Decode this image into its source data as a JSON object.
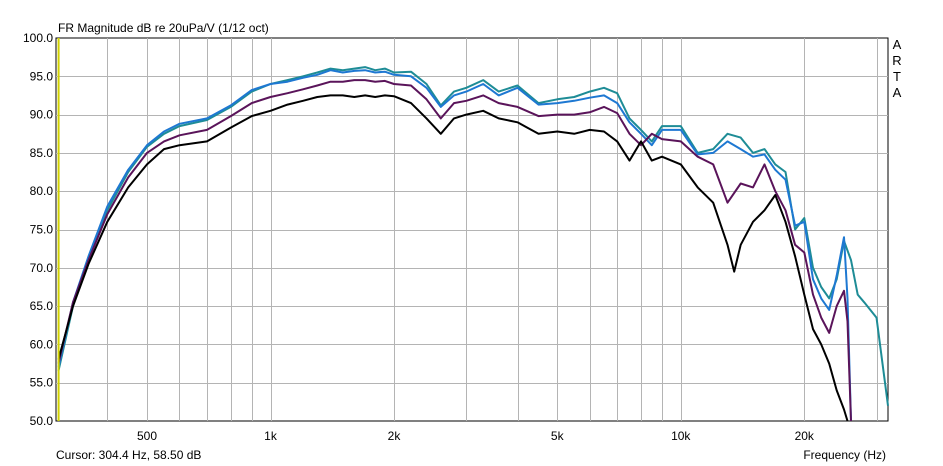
{
  "chart_data": {
    "type": "line",
    "title": "FR Magnitude dB re 20uPa/V (1/12 oct)",
    "watermark": [
      "A",
      "R",
      "T",
      "A"
    ],
    "cursor_readout": "Cursor: 304.4 Hz, 58.50 dB",
    "xlabel": "Frequency (Hz)",
    "ylabel": "",
    "x_scale": "log",
    "xlim": [
      300,
      32000
    ],
    "ylim": [
      50,
      100
    ],
    "grid": true,
    "cursor_freq": 304.4,
    "x_ticks": [
      {
        "value": 500,
        "label": "500"
      },
      {
        "value": 1000,
        "label": "1k"
      },
      {
        "value": 2000,
        "label": "2k"
      },
      {
        "value": 5000,
        "label": "5k"
      },
      {
        "value": 10000,
        "label": "10k"
      },
      {
        "value": 20000,
        "label": "20k"
      }
    ],
    "y_ticks": [
      {
        "value": 100,
        "label": "100.0"
      },
      {
        "value": 95,
        "label": "95.0"
      },
      {
        "value": 90,
        "label": "90.0"
      },
      {
        "value": 85,
        "label": "85.0"
      },
      {
        "value": 80,
        "label": "80.0"
      },
      {
        "value": 75,
        "label": "75.0"
      },
      {
        "value": 70,
        "label": "70.0"
      },
      {
        "value": 65,
        "label": "65.0"
      },
      {
        "value": 60,
        "label": "60.0"
      },
      {
        "value": 55,
        "label": "55.0"
      },
      {
        "value": 50,
        "label": "50.0"
      }
    ],
    "series": [
      {
        "color": "#1e8c96",
        "x": [
          304,
          330,
          360,
          400,
          450,
          500,
          550,
          600,
          700,
          800,
          900,
          1000,
          1100,
          1200,
          1300,
          1400,
          1500,
          1600,
          1700,
          1800,
          1900,
          2000,
          2200,
          2400,
          2600,
          2800,
          3000,
          3300,
          3600,
          4000,
          4500,
          5000,
          5500,
          6000,
          6500,
          7000,
          7500,
          8000,
          8500,
          9000,
          10000,
          11000,
          12000,
          13000,
          14000,
          15000,
          16000,
          17000,
          18000,
          19000,
          20000,
          21000,
          22000,
          23000,
          24000,
          25000,
          26000,
          27000,
          28000,
          30000,
          32000
        ],
        "y": [
          56.5,
          65.0,
          71.0,
          77.5,
          82.5,
          85.8,
          87.5,
          88.5,
          89.3,
          91.0,
          93.0,
          94.0,
          94.5,
          95.0,
          95.5,
          96.0,
          95.8,
          96.0,
          96.2,
          95.8,
          96.0,
          95.5,
          95.6,
          94.0,
          91.2,
          93.0,
          93.5,
          94.5,
          93.0,
          93.8,
          91.5,
          92.0,
          92.3,
          93.0,
          93.5,
          92.8,
          89.5,
          88.0,
          86.5,
          88.5,
          88.5,
          85.0,
          85.5,
          87.5,
          87.0,
          85.0,
          85.5,
          83.5,
          82.5,
          75.0,
          76.5,
          70.0,
          67.5,
          66.0,
          68.5,
          73.5,
          71.0,
          66.5,
          65.5,
          63.5,
          52.0
        ]
      },
      {
        "color": "#1e78d2",
        "x": [
          304,
          330,
          360,
          400,
          450,
          500,
          550,
          600,
          700,
          800,
          900,
          1000,
          1100,
          1200,
          1300,
          1400,
          1500,
          1600,
          1700,
          1800,
          1900,
          2000,
          2200,
          2400,
          2600,
          2800,
          3000,
          3300,
          3600,
          4000,
          4500,
          5000,
          5500,
          6000,
          6500,
          7000,
          7500,
          8000,
          8500,
          9000,
          10000,
          11000,
          12000,
          13000,
          14000,
          15000,
          16000,
          17000,
          18000,
          19000,
          20000,
          21000,
          22000,
          23000,
          24000,
          25000,
          25500,
          26000
        ],
        "y": [
          57.0,
          65.5,
          71.5,
          78.0,
          82.8,
          86.0,
          87.8,
          88.8,
          89.5,
          91.2,
          93.2,
          94.0,
          94.3,
          94.8,
          95.2,
          95.8,
          95.5,
          95.7,
          95.8,
          95.5,
          95.6,
          95.2,
          95.0,
          93.5,
          91.0,
          92.5,
          93.0,
          94.0,
          92.5,
          93.5,
          91.3,
          91.5,
          91.8,
          92.2,
          92.5,
          91.5,
          89.0,
          87.5,
          86.0,
          88.0,
          88.0,
          84.8,
          85.0,
          86.5,
          85.5,
          84.5,
          84.8,
          82.8,
          81.5,
          75.5,
          76.0,
          68.5,
          66.0,
          64.5,
          69.0,
          74.0,
          66.0,
          50.0
        ]
      },
      {
        "color": "#5a145a",
        "x": [
          304,
          330,
          360,
          400,
          450,
          500,
          550,
          600,
          700,
          800,
          900,
          1000,
          1100,
          1200,
          1300,
          1400,
          1500,
          1600,
          1700,
          1800,
          1900,
          2000,
          2200,
          2400,
          2600,
          2800,
          3000,
          3300,
          3600,
          4000,
          4500,
          5000,
          5500,
          6000,
          6500,
          7000,
          7500,
          8000,
          8500,
          9000,
          10000,
          11000,
          12000,
          13000,
          14000,
          15000,
          16000,
          17000,
          18000,
          19000,
          20000,
          21000,
          22000,
          23000,
          24000,
          25000,
          25500,
          26000
        ],
        "y": [
          57.5,
          65.5,
          71.0,
          77.0,
          81.8,
          85.0,
          86.5,
          87.3,
          88.0,
          89.8,
          91.5,
          92.3,
          92.8,
          93.3,
          93.8,
          94.3,
          94.3,
          94.5,
          94.5,
          94.3,
          94.4,
          94.0,
          93.8,
          92.0,
          89.5,
          91.5,
          91.8,
          92.5,
          91.5,
          91.0,
          89.8,
          90.0,
          90.0,
          90.3,
          91.0,
          90.2,
          87.5,
          86.0,
          87.5,
          86.8,
          86.5,
          84.5,
          83.5,
          78.5,
          81.0,
          80.5,
          83.5,
          80.0,
          77.5,
          73.0,
          72.0,
          66.5,
          63.5,
          61.5,
          65.0,
          67.0,
          63.0,
          50.0
        ]
      },
      {
        "color": "#000000",
        "x": [
          304,
          330,
          360,
          400,
          450,
          500,
          550,
          600,
          700,
          800,
          900,
          1000,
          1100,
          1200,
          1300,
          1400,
          1500,
          1600,
          1700,
          1800,
          1900,
          2000,
          2200,
          2400,
          2600,
          2800,
          3000,
          3300,
          3600,
          4000,
          4500,
          5000,
          5500,
          6000,
          6500,
          7000,
          7500,
          8000,
          8500,
          9000,
          10000,
          11000,
          12000,
          13000,
          13500,
          14000,
          15000,
          16000,
          17000,
          18000,
          19000,
          20000,
          21000,
          22000,
          23000,
          24000,
          25000,
          25500
        ],
        "y": [
          58.0,
          65.0,
          70.5,
          76.0,
          80.5,
          83.5,
          85.5,
          86.0,
          86.5,
          88.3,
          89.8,
          90.5,
          91.3,
          91.8,
          92.3,
          92.5,
          92.5,
          92.3,
          92.5,
          92.3,
          92.5,
          92.4,
          91.5,
          89.5,
          87.5,
          89.5,
          90.0,
          90.5,
          89.5,
          89.0,
          87.5,
          87.8,
          87.5,
          88.0,
          87.8,
          86.5,
          84.0,
          86.5,
          84.0,
          84.5,
          83.5,
          80.5,
          78.5,
          73.0,
          69.5,
          73.0,
          76.0,
          77.5,
          79.5,
          76.0,
          71.5,
          66.5,
          62.0,
          60.0,
          57.5,
          54.0,
          51.5,
          50.0
        ]
      }
    ]
  }
}
